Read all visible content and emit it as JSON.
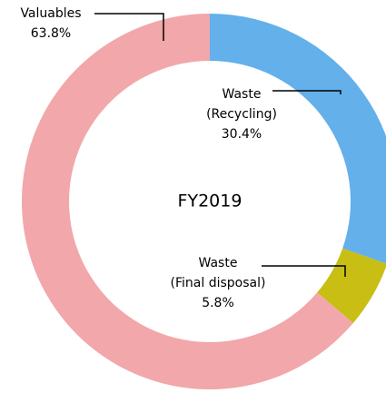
{
  "chart_data": {
    "type": "pie",
    "center_label": "FY2019",
    "categories": [
      [
        "Waste",
        "(Recycling)"
      ],
      [
        "Waste",
        "(Final disposal)"
      ],
      [
        "Valuables"
      ]
    ],
    "values": [
      30.4,
      5.8,
      63.8
    ],
    "value_labels": [
      "30.4%",
      "5.8%",
      "63.8%"
    ],
    "colors": [
      "#63b0ea",
      "#c8be14",
      "#f2a7aa"
    ]
  }
}
